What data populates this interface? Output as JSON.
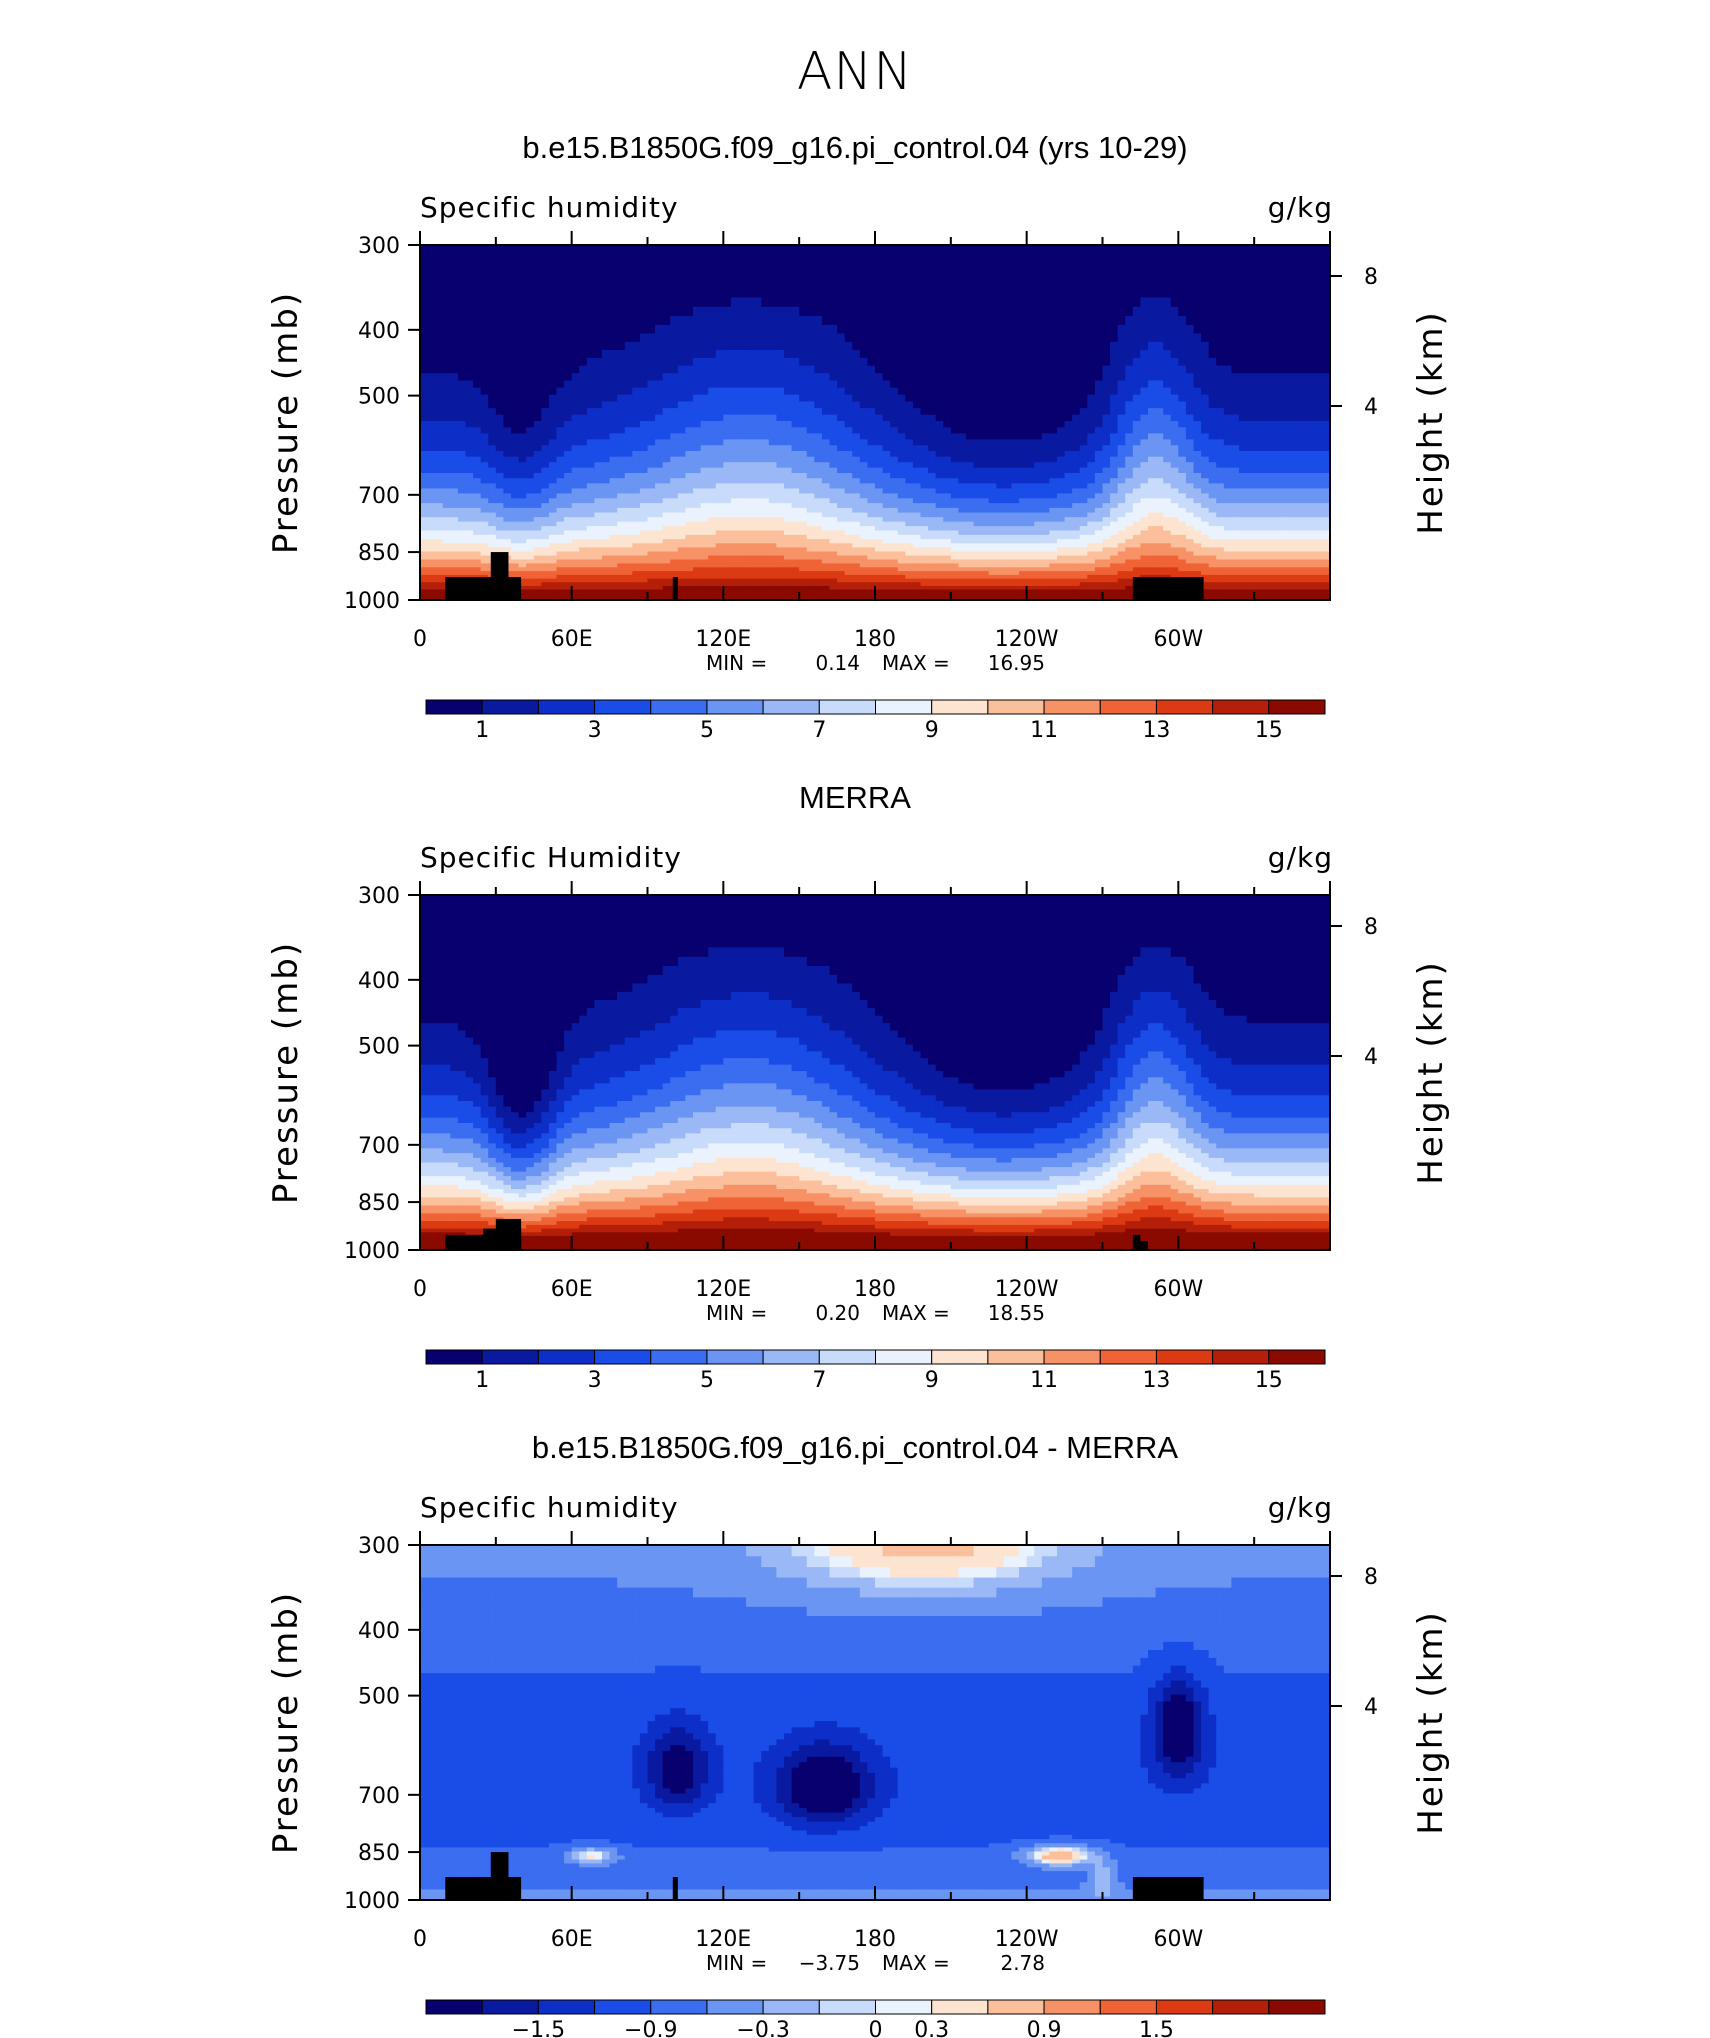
{
  "figure": {
    "title": "ANN"
  },
  "chart_data": [
    {
      "type": "heatmap",
      "title": "b.e15.B1850G.f09_g16.pi_control.04 (yrs 10-29)",
      "variable_label": "Specific humidity",
      "units": "g/kg",
      "xlabel": "",
      "ylabel": "Pressure (mb)",
      "ylabel_right": "Height (km)",
      "x_ticks": [
        "0",
        "60E",
        "120E",
        "180",
        "120W",
        "60W"
      ],
      "y_ticks": [
        "300",
        "400",
        "500",
        "700",
        "850",
        "1000"
      ],
      "y_ticks_right": [
        "8",
        "4"
      ],
      "min_label": "MIN =",
      "min": "0.14",
      "max_label": "MAX =",
      "max": "16.95",
      "colorbar_ticks": [
        "1",
        "3",
        "5",
        "7",
        "9",
        "11",
        "13",
        "15"
      ],
      "colorbar_levels": [
        1,
        2,
        3,
        4,
        5,
        6,
        7,
        8,
        9,
        10,
        11,
        12,
        13,
        14,
        15
      ]
    },
    {
      "type": "heatmap",
      "title": "MERRA",
      "variable_label": "Specific Humidity",
      "units": "g/kg",
      "xlabel": "",
      "ylabel": "Pressure (mb)",
      "ylabel_right": "Height (km)",
      "x_ticks": [
        "0",
        "60E",
        "120E",
        "180",
        "120W",
        "60W"
      ],
      "y_ticks": [
        "300",
        "400",
        "500",
        "700",
        "850",
        "1000"
      ],
      "y_ticks_right": [
        "8",
        "4"
      ],
      "min_label": "MIN =",
      "min": "0.20",
      "max_label": "MAX =",
      "max": "18.55",
      "colorbar_ticks": [
        "1",
        "3",
        "5",
        "7",
        "9",
        "11",
        "13",
        "15"
      ],
      "colorbar_levels": [
        1,
        2,
        3,
        4,
        5,
        6,
        7,
        8,
        9,
        10,
        11,
        12,
        13,
        14,
        15
      ]
    },
    {
      "type": "heatmap",
      "title": "b.e15.B1850G.f09_g16.pi_control.04 - MERRA",
      "variable_label": "Specific humidity",
      "units": "g/kg",
      "xlabel": "",
      "ylabel": "Pressure (mb)",
      "ylabel_right": "Height (km)",
      "x_ticks": [
        "0",
        "60E",
        "120E",
        "180",
        "120W",
        "60W"
      ],
      "y_ticks": [
        "300",
        "400",
        "500",
        "700",
        "850",
        "1000"
      ],
      "y_ticks_right": [
        "8",
        "4"
      ],
      "min_label": "MIN =",
      "min": "−3.75",
      "max_label": "MAX =",
      "max": "2.78",
      "colorbar_ticks": [
        "−1.5",
        "−0.9",
        "−0.3",
        "0",
        "0.3",
        "0.9",
        "1.5"
      ],
      "colorbar_levels": [
        -1.8,
        -1.5,
        -1.2,
        -0.9,
        -0.6,
        -0.3,
        -0.1,
        0,
        0.1,
        0.3,
        0.6,
        0.9,
        1.2,
        1.5,
        1.8
      ]
    }
  ],
  "colors": {
    "palette": [
      "#08006e",
      "#0a1aa0",
      "#0d2fc8",
      "#1a4de8",
      "#3a6df0",
      "#6a95f2",
      "#9ab8f6",
      "#c8dbfa",
      "#eaf2fd",
      "#fde4d0",
      "#fbbf9c",
      "#f79266",
      "#f06336",
      "#dc3a12",
      "#b31f08",
      "#8a0a00"
    ],
    "topography": "#000000",
    "axis": "#000000"
  }
}
